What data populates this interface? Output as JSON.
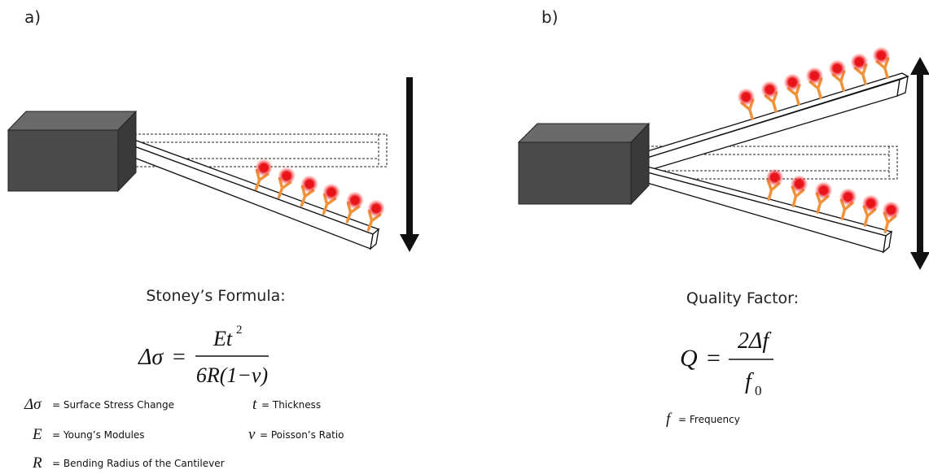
{
  "panels": [
    {
      "label": "a)",
      "formula_title": "Stoney’s Formula:",
      "formula": {
        "lhs": "Δσ",
        "equals": "=",
        "numerator": "Et",
        "numerator_sup": "2",
        "denominator": "6R(1−ν)"
      },
      "legend": [
        {
          "symbol": "Δσ",
          "text": "= Surface Stress Change"
        },
        {
          "symbol": "t",
          "text": "= Thickness"
        },
        {
          "symbol": "E",
          "text": "= Young’s Modules"
        },
        {
          "symbol": "ν",
          "text": "= Poisson’s Ratio"
        },
        {
          "symbol": "R",
          "text": "= Bending Radius of the Cantilever"
        }
      ]
    },
    {
      "label": "b)",
      "formula_title": "Quality Factor:",
      "formula": {
        "lhs": "Q",
        "equals": "=",
        "numerator": "2Δf",
        "denominator": "f",
        "denominator_sub": "0"
      },
      "legend": [
        {
          "symbol": "f",
          "text": "= Frequency"
        }
      ]
    }
  ]
}
